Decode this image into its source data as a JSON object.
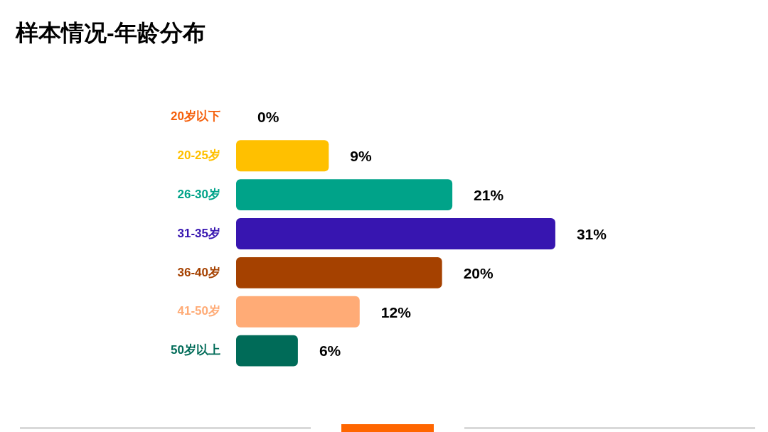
{
  "chart_data": {
    "type": "bar",
    "orientation": "horizontal",
    "title": "样本情况-年龄分布",
    "categories": [
      "20岁以下",
      "20-25岁",
      "26-30岁",
      "31-35岁",
      "36-40岁",
      "41-50岁",
      "50岁以上"
    ],
    "values": [
      0,
      9,
      21,
      31,
      20,
      12,
      6
    ],
    "value_labels": [
      "0%",
      "9%",
      "21%",
      "31%",
      "20%",
      "12%",
      "6%"
    ],
    "colors": [
      "#f5600c",
      "#ffc000",
      "#00a389",
      "#3715b0",
      "#a54100",
      "#ffab76",
      "#006b58"
    ],
    "tick_labels": "y"
  }
}
